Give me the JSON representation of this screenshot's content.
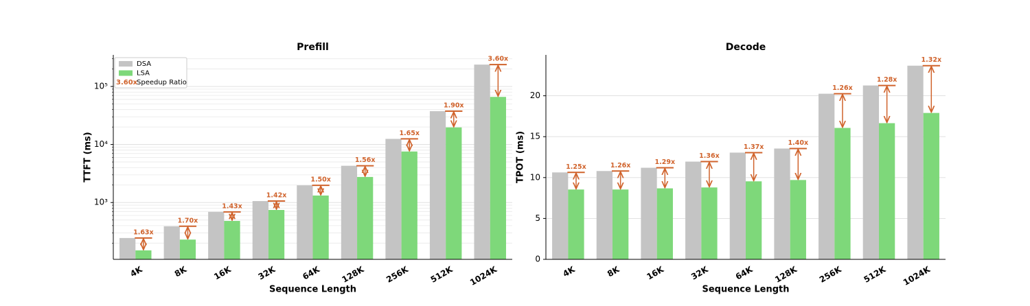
{
  "chart_data": [
    {
      "type": "bar",
      "title": "Prefill",
      "x_label": "Sequence Length",
      "y_label": "TTFT (ms)",
      "categories": [
        "4K",
        "8K",
        "16K",
        "32K",
        "64K",
        "128K",
        "256K",
        "512K",
        "1024K"
      ],
      "series": [
        {
          "name": "DSA",
          "color": "#c4c4c4",
          "values": [
            245,
            390,
            690,
            1060,
            1980,
            4300,
            12500,
            37500,
            238000
          ]
        },
        {
          "name": "LSA",
          "color": "#7ed87a",
          "values": [
            150,
            230,
            482,
            745,
            1320,
            2760,
            7580,
            19700,
            66100
          ]
        }
      ],
      "speedup": {
        "name": "Speedup Ratio",
        "legend_sample": "3.60x",
        "color": "#d0632c",
        "values": [
          1.63,
          1.7,
          1.43,
          1.42,
          1.5,
          1.56,
          1.65,
          1.9,
          3.6
        ],
        "value_labels": [
          "1.63x",
          "1.70x",
          "1.43x",
          "1.42x",
          "1.50x",
          "1.56x",
          "1.65x",
          "1.90x",
          "3.60x"
        ]
      },
      "log_scale": true,
      "ylim": [
        105,
        350000
      ],
      "yticks": [
        {
          "value": 1000,
          "label": "10³"
        },
        {
          "value": 10000,
          "label": "10⁴"
        },
        {
          "value": 100000,
          "label": "10⁵"
        }
      ],
      "minor_yticks": [
        200,
        300,
        400,
        500,
        600,
        700,
        800,
        900,
        2000,
        3000,
        4000,
        5000,
        6000,
        7000,
        8000,
        9000,
        20000,
        30000,
        40000,
        50000,
        60000,
        70000,
        80000,
        90000,
        200000,
        300000
      ],
      "grid": true,
      "legend": "upper left"
    },
    {
      "type": "bar",
      "title": "Decode",
      "x_label": "Sequence Length",
      "y_label": "TPOT (ms)",
      "categories": [
        "4K",
        "8K",
        "16K",
        "32K",
        "64K",
        "128K",
        "256K",
        "512K",
        "1024K"
      ],
      "series": [
        {
          "name": "DSA",
          "color": "#c4c4c4",
          "values": [
            10.63,
            10.8,
            11.2,
            11.95,
            13.05,
            13.55,
            20.25,
            21.26,
            23.68
          ]
        },
        {
          "name": "LSA",
          "color": "#7ed87a",
          "values": [
            8.54,
            8.54,
            8.68,
            8.79,
            9.54,
            9.7,
            16.07,
            16.65,
            17.9
          ]
        }
      ],
      "speedup": {
        "color": "#d0632c",
        "values": [
          1.25,
          1.26,
          1.29,
          1.36,
          1.37,
          1.4,
          1.26,
          1.28,
          1.32
        ],
        "value_labels": [
          "1.25x",
          "1.26x",
          "1.29x",
          "1.36x",
          "1.37x",
          "1.40x",
          "1.26x",
          "1.28x",
          "1.32x"
        ]
      },
      "log_scale": false,
      "ylim": [
        0,
        25
      ],
      "yticks": [
        0,
        5,
        10,
        15,
        20
      ],
      "grid": true
    }
  ]
}
